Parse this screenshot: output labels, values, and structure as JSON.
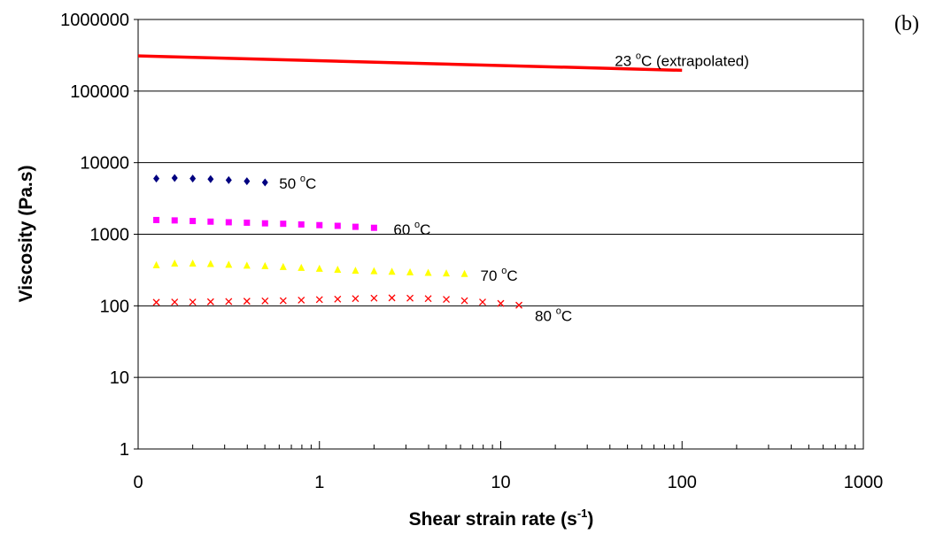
{
  "chart_data": {
    "type": "scatter",
    "panel_label": "(b)",
    "xlabel": {
      "main": "Shear strain rate (s",
      "sup": "-1",
      "end": ")"
    },
    "ylabel": "Viscosity (Pa.s)",
    "x_scale": "log",
    "y_scale": "log",
    "xlim": [
      0.1,
      1000
    ],
    "ylim": [
      1,
      1000000
    ],
    "x_tick_labels": [
      "0",
      "1",
      "10",
      "100",
      "1000"
    ],
    "y_tick_labels": [
      "1",
      "10",
      "100",
      "1000",
      "10000",
      "100000",
      "1000000"
    ],
    "grid": "horizontal major gridlines",
    "colors": {
      "s23": "#ff0000",
      "s50": "#000080",
      "s60": "#ff00ff",
      "s70": "#ffff00",
      "s80": "#ff0000",
      "grid": "#000000"
    },
    "series": [
      {
        "key": "s23",
        "label": {
          "main": "23 ",
          "sup": "o",
          "end": "C (extrapolated)"
        },
        "marker": "line",
        "x": [
          0.1,
          100
        ],
        "y": [
          310000,
          195000
        ]
      },
      {
        "key": "s50",
        "label": {
          "main": "50 ",
          "sup": "o",
          "end": "C"
        },
        "marker": "diamond",
        "x": [
          0.126,
          0.159,
          0.2,
          0.251,
          0.316,
          0.398,
          0.501
        ],
        "y": [
          6000,
          6100,
          6000,
          5900,
          5700,
          5500,
          5300
        ]
      },
      {
        "key": "s60",
        "label": {
          "main": "60 ",
          "sup": "o",
          "end": "C"
        },
        "marker": "square",
        "x": [
          0.126,
          0.159,
          0.2,
          0.251,
          0.316,
          0.398,
          0.501,
          0.631,
          0.794,
          1.0,
          1.26,
          1.58,
          2.0
        ],
        "y": [
          1580,
          1560,
          1530,
          1500,
          1470,
          1450,
          1420,
          1400,
          1370,
          1340,
          1310,
          1270,
          1230
        ]
      },
      {
        "key": "s70",
        "label": {
          "main": "70 ",
          "sup": "o",
          "end": "C"
        },
        "marker": "triangle",
        "x": [
          0.126,
          0.159,
          0.2,
          0.251,
          0.316,
          0.398,
          0.501,
          0.631,
          0.794,
          1.0,
          1.26,
          1.58,
          2.0,
          2.51,
          3.16,
          3.98,
          5.01,
          6.31
        ],
        "y": [
          370,
          390,
          390,
          385,
          375,
          365,
          360,
          350,
          340,
          330,
          320,
          310,
          305,
          300,
          295,
          290,
          285,
          280
        ]
      },
      {
        "key": "s80",
        "label": {
          "main": "80 ",
          "sup": "o",
          "end": "C"
        },
        "marker": "cross",
        "x": [
          0.126,
          0.159,
          0.2,
          0.251,
          0.316,
          0.398,
          0.501,
          0.631,
          0.794,
          1.0,
          1.26,
          1.58,
          2.0,
          2.51,
          3.16,
          3.98,
          5.01,
          6.31,
          7.94,
          10.0,
          12.6
        ],
        "y": [
          112,
          113,
          113,
          114,
          115,
          116,
          117,
          118,
          120,
          122,
          124,
          126,
          128,
          129,
          128,
          126,
          123,
          118,
          113,
          108,
          102
        ]
      }
    ]
  }
}
